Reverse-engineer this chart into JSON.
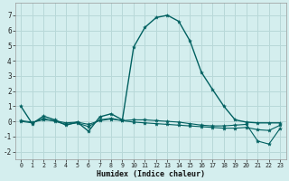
{
  "xlabel": "Humidex (Indice chaleur)",
  "background_color": "#d4eeee",
  "grid_color": "#b8d8d8",
  "line_color": "#006060",
  "xlim": [
    -0.5,
    23.5
  ],
  "ylim": [
    -2.5,
    7.8
  ],
  "yticks": [
    -2,
    -1,
    0,
    1,
    2,
    3,
    4,
    5,
    6,
    7
  ],
  "xticks": [
    0,
    1,
    2,
    3,
    4,
    5,
    6,
    7,
    8,
    9,
    10,
    11,
    12,
    13,
    14,
    15,
    16,
    17,
    18,
    19,
    20,
    21,
    22,
    23
  ],
  "series": [
    {
      "x": [
        0,
        1,
        2,
        3,
        4,
        5,
        6,
        7,
        8,
        9,
        10,
        11,
        12,
        13,
        14,
        15,
        16,
        17,
        18,
        19,
        20,
        21,
        22,
        23
      ],
      "y": [
        1.0,
        -0.15,
        0.35,
        0.1,
        -0.25,
        -0.05,
        -0.65,
        0.3,
        0.5,
        0.1,
        4.9,
        6.2,
        6.85,
        7.0,
        6.6,
        5.3,
        3.25,
        2.1,
        1.0,
        0.1,
        -0.05,
        -0.1,
        -0.1,
        -0.1
      ]
    },
    {
      "x": [
        0,
        1,
        2,
        3,
        4,
        5,
        6,
        7,
        8,
        9,
        10,
        11,
        12,
        13,
        14,
        15,
        16,
        17,
        18,
        19,
        20,
        21,
        22,
        23
      ],
      "y": [
        0.0,
        -0.1,
        0.2,
        0.0,
        -0.2,
        -0.1,
        -0.35,
        0.1,
        0.2,
        0.05,
        0.1,
        0.1,
        0.05,
        0.0,
        -0.05,
        -0.15,
        -0.25,
        -0.3,
        -0.3,
        -0.25,
        -0.2,
        -1.3,
        -1.5,
        -0.45
      ]
    },
    {
      "x": [
        0,
        1,
        2,
        3,
        4,
        5,
        6,
        7,
        8,
        9,
        10,
        11,
        12,
        13,
        14,
        15,
        16,
        17,
        18,
        19,
        20,
        21,
        22,
        23
      ],
      "y": [
        0.05,
        -0.05,
        0.1,
        0.05,
        -0.1,
        -0.05,
        -0.2,
        0.05,
        0.15,
        0.05,
        -0.05,
        -0.1,
        -0.15,
        -0.2,
        -0.25,
        -0.3,
        -0.35,
        -0.4,
        -0.45,
        -0.45,
        -0.4,
        -0.55,
        -0.6,
        -0.25
      ]
    }
  ]
}
